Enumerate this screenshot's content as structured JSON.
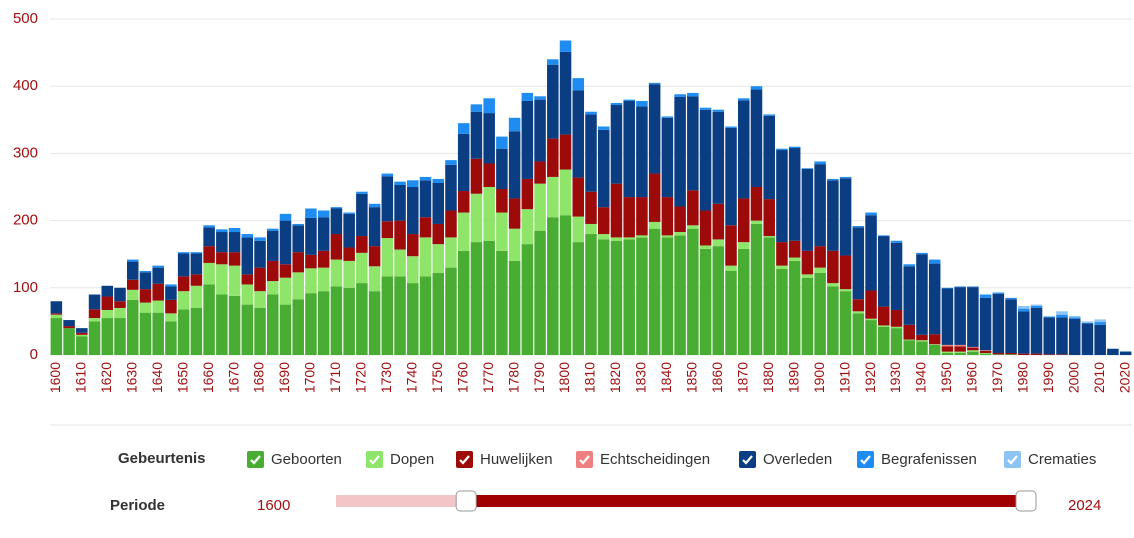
{
  "chart_data": {
    "type": "stacked_bar",
    "categories": [
      1600,
      null,
      1610,
      null,
      1620,
      null,
      1630,
      null,
      1640,
      null,
      1650,
      null,
      1660,
      null,
      1670,
      null,
      1680,
      null,
      1690,
      null,
      1700,
      null,
      1710,
      null,
      1720,
      null,
      1730,
      null,
      1740,
      null,
      1750,
      null,
      1760,
      null,
      1770,
      null,
      1780,
      null,
      1790,
      null,
      1800,
      null,
      1810,
      null,
      1820,
      null,
      1830,
      null,
      1840,
      null,
      1850,
      null,
      1860,
      null,
      1870,
      null,
      1880,
      null,
      1890,
      null,
      1900,
      null,
      1910,
      null,
      1920,
      null,
      1930,
      null,
      1940,
      null,
      1950,
      null,
      1960,
      null,
      1970,
      null,
      1980,
      null,
      1990,
      null,
      2000,
      null,
      2010,
      null,
      2020
    ],
    "ylim": [
      0,
      500
    ],
    "yticks": [
      0,
      100,
      200,
      300,
      400,
      500
    ],
    "grid": true,
    "legend_title": "Gebeurtenis",
    "series": [
      {
        "name": "Geboorten",
        "color": "#4aad33",
        "values": [
          55,
          40,
          28,
          50,
          55,
          55,
          82,
          63,
          63,
          50,
          68,
          70,
          105,
          90,
          88,
          75,
          70,
          90,
          75,
          83,
          92,
          95,
          102,
          100,
          107,
          95,
          117,
          117,
          107,
          117,
          122,
          130,
          155,
          168,
          170,
          155,
          140,
          165,
          185,
          205,
          208,
          168,
          180,
          172,
          170,
          172,
          175,
          188,
          175,
          178,
          188,
          158,
          162,
          125,
          158,
          195,
          175,
          128,
          140,
          115,
          122,
          102,
          95,
          62,
          52,
          42,
          40,
          22,
          20,
          15,
          3,
          3,
          5,
          2,
          1,
          1,
          0,
          0,
          0,
          0,
          0,
          0,
          0,
          0,
          0
        ]
      },
      {
        "name": "Dopen",
        "color": "#8fe46a",
        "values": [
          5,
          0,
          2,
          5,
          12,
          15,
          15,
          15,
          18,
          12,
          27,
          33,
          32,
          45,
          45,
          30,
          25,
          20,
          40,
          40,
          37,
          35,
          40,
          40,
          45,
          37,
          57,
          40,
          40,
          58,
          43,
          45,
          57,
          72,
          80,
          57,
          48,
          52,
          70,
          60,
          68,
          38,
          15,
          8,
          5,
          3,
          3,
          10,
          3,
          5,
          5,
          5,
          10,
          8,
          10,
          5,
          2,
          5,
          5,
          5,
          8,
          5,
          3,
          3,
          2,
          2,
          2,
          1,
          2,
          1,
          2,
          2,
          2,
          1,
          0,
          0,
          0,
          0,
          0,
          0,
          0,
          0,
          0,
          0,
          0
        ]
      },
      {
        "name": "Huwelijken",
        "color": "#9c0a0a",
        "values": [
          2,
          3,
          3,
          13,
          20,
          10,
          15,
          20,
          25,
          20,
          22,
          17,
          25,
          18,
          20,
          15,
          35,
          30,
          20,
          30,
          20,
          25,
          38,
          20,
          25,
          30,
          25,
          43,
          33,
          30,
          30,
          40,
          32,
          52,
          35,
          35,
          45,
          45,
          33,
          57,
          52,
          58,
          48,
          40,
          80,
          60,
          57,
          72,
          57,
          38,
          52,
          52,
          53,
          60,
          65,
          50,
          55,
          35,
          25,
          35,
          32,
          48,
          50,
          18,
          42,
          28,
          25,
          22,
          8,
          15,
          8,
          8,
          4,
          3,
          2,
          2,
          2,
          2,
          1,
          1,
          0,
          0,
          0,
          0,
          0
        ]
      },
      {
        "name": "Echtscheidingen",
        "color": "#f08080",
        "values": [
          0,
          0,
          0,
          0,
          0,
          0,
          0,
          0,
          0,
          0,
          0,
          0,
          0,
          0,
          0,
          0,
          0,
          0,
          0,
          0,
          0,
          0,
          0,
          0,
          0,
          0,
          0,
          0,
          0,
          0,
          0,
          0,
          0,
          0,
          0,
          0,
          0,
          0,
          0,
          0,
          0,
          0,
          0,
          0,
          0,
          0,
          0,
          0,
          0,
          0,
          0,
          0,
          0,
          0,
          0,
          0,
          0,
          0,
          0,
          0,
          0,
          0,
          0,
          0,
          0,
          0,
          0,
          0,
          0,
          0,
          2,
          2,
          1,
          1,
          0,
          0,
          0,
          0,
          0,
          0,
          0,
          0,
          0,
          0,
          0
        ]
      },
      {
        "name": "Overleden",
        "color": "#0b3d82",
        "values": [
          18,
          9,
          7,
          22,
          16,
          20,
          27,
          25,
          24,
          20,
          34,
          31,
          28,
          30,
          30,
          55,
          40,
          45,
          65,
          40,
          55,
          50,
          38,
          50,
          63,
          58,
          67,
          53,
          70,
          55,
          61,
          68,
          85,
          70,
          75,
          60,
          100,
          116,
          92,
          110,
          123,
          130,
          115,
          115,
          117,
          143,
          135,
          133,
          118,
          163,
          140,
          150,
          137,
          145,
          146,
          145,
          124,
          137,
          138,
          122,
          122,
          105,
          115,
          107,
          112,
          105,
          100,
          87,
          120,
          105,
          84,
          86,
          89,
          78,
          88,
          80,
          63,
          68,
          55,
          55,
          54,
          47,
          45,
          9,
          5
        ]
      },
      {
        "name": "Begrafenissen",
        "color": "#1e8cf0",
        "values": [
          0,
          0,
          0,
          0,
          0,
          0,
          3,
          2,
          3,
          3,
          2,
          2,
          3,
          4,
          6,
          5,
          5,
          3,
          10,
          2,
          14,
          10,
          2,
          2,
          3,
          5,
          4,
          5,
          10,
          5,
          6,
          7,
          16,
          11,
          22,
          18,
          20,
          12,
          5,
          8,
          17,
          18,
          4,
          5,
          3,
          2,
          8,
          2,
          2,
          4,
          5,
          3,
          3,
          2,
          3,
          5,
          2,
          2,
          2,
          1,
          4,
          2,
          2,
          2,
          4,
          1,
          3,
          3,
          2,
          6,
          1,
          1,
          1,
          5,
          2,
          2,
          4,
          3,
          1,
          4,
          2,
          1,
          4,
          0,
          0
        ]
      },
      {
        "name": "Crematies",
        "color": "#8cc4f4",
        "values": [
          0,
          0,
          0,
          0,
          0,
          0,
          0,
          0,
          0,
          0,
          0,
          0,
          0,
          0,
          0,
          0,
          0,
          0,
          0,
          0,
          0,
          0,
          0,
          0,
          0,
          0,
          0,
          0,
          0,
          0,
          0,
          0,
          0,
          0,
          0,
          0,
          0,
          0,
          0,
          0,
          0,
          0,
          0,
          0,
          0,
          0,
          0,
          0,
          0,
          0,
          0,
          0,
          0,
          0,
          0,
          0,
          0,
          0,
          0,
          0,
          0,
          0,
          0,
          0,
          0,
          0,
          0,
          0,
          0,
          0,
          0,
          0,
          0,
          0,
          0,
          0,
          4,
          2,
          1,
          5,
          2,
          2,
          4,
          1,
          1
        ]
      }
    ],
    "slider": {
      "label": "Periode",
      "min": 1600,
      "max": 2024,
      "from": 1680,
      "to": 2024
    }
  }
}
